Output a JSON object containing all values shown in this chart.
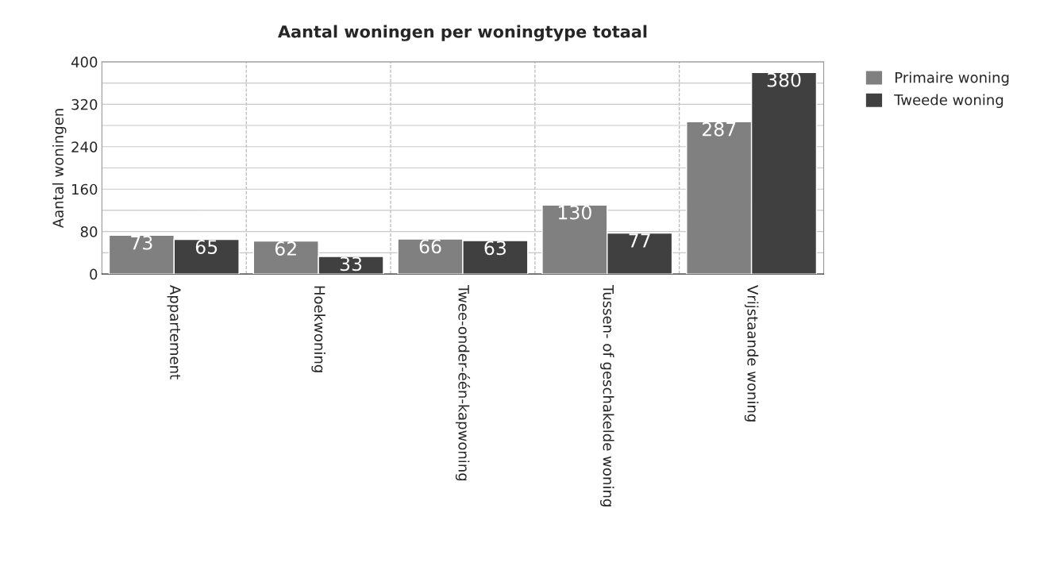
{
  "chart_data": {
    "type": "bar",
    "title": "Aantal woningen per woningtype totaal",
    "ylabel": "Aantal woningen",
    "categories": [
      "Appartement",
      "Hoekwoning",
      "Twee-onder-één-kapwoning",
      "Tussen- of geschakelde woning",
      "Vrijstaande woning"
    ],
    "series": [
      {
        "name": "Primaire woning",
        "color": "#808080",
        "values": [
          73,
          62,
          66,
          130,
          287
        ]
      },
      {
        "name": "Tweede woning",
        "color": "#404040",
        "values": [
          65,
          33,
          63,
          77,
          380
        ]
      }
    ],
    "ylim": [
      0,
      400
    ],
    "yticks": [
      0,
      {
        "value": 40,
        "label": null
      },
      80,
      {
        "value": 120,
        "label": null
      },
      160,
      {
        "value": 200,
        "label": null
      },
      240,
      {
        "value": 280,
        "label": null
      },
      320,
      {
        "value": 360,
        "label": null
      },
      400
    ],
    "data_labels": true,
    "grid": true,
    "legend": "top right"
  }
}
